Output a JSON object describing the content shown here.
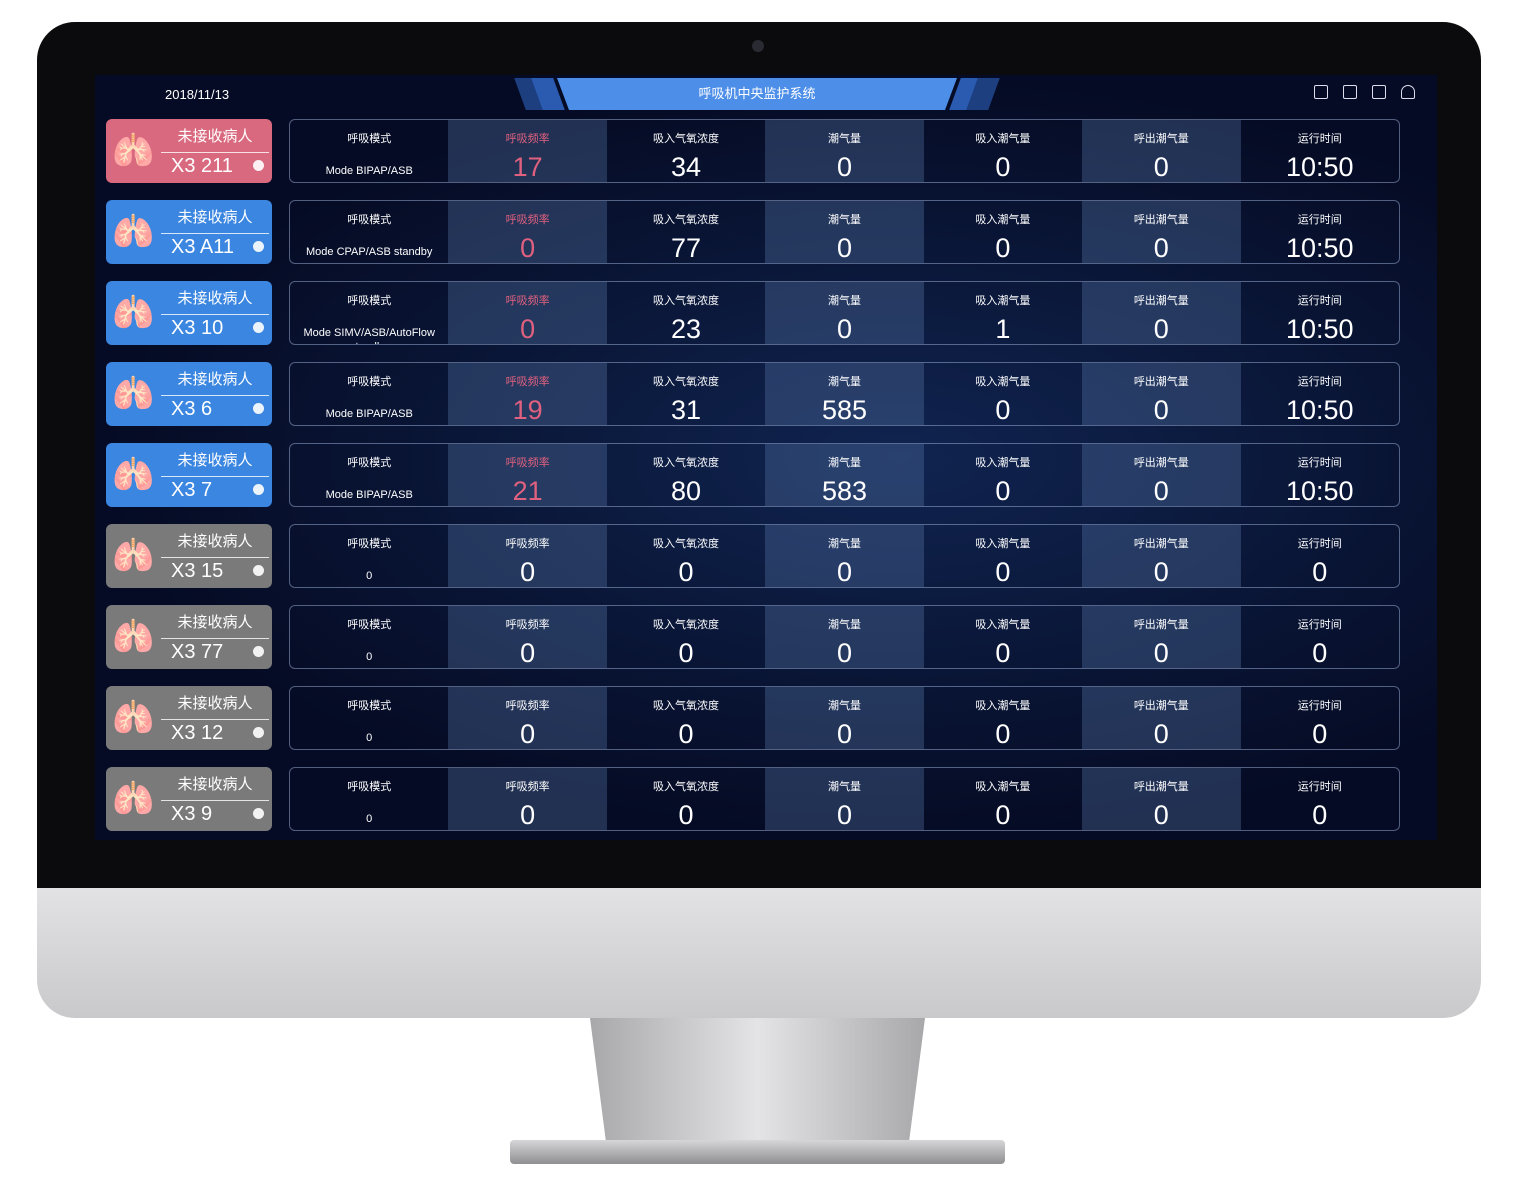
{
  "header": {
    "date": "2018/11/13",
    "title": "呼吸机中央监护系统",
    "icons": [
      "list-icon",
      "edit-icon",
      "layout-icon",
      "user-icon"
    ]
  },
  "colors": {
    "alert": "#d9697f",
    "active": "#3a86e0",
    "inactive": "#7a7a7a",
    "pink_text": "#e0607f"
  },
  "labels": [
    "呼吸模式",
    "呼吸频率",
    "吸入气氧浓度",
    "潮气量",
    "吸入潮气量",
    "呼出潮气量",
    "运行时间"
  ],
  "rows": [
    {
      "status": "未接收病人",
      "bed": "X3 211",
      "state": "alert",
      "mode": "Mode BIPAP/ASB",
      "values": [
        "17",
        "34",
        "0",
        "0",
        "0",
        "10:50"
      ]
    },
    {
      "status": "未接收病人",
      "bed": "X3 A11",
      "state": "active",
      "mode": "Mode CPAP/ASB standby",
      "values": [
        "0",
        "77",
        "0",
        "0",
        "0",
        "10:50"
      ]
    },
    {
      "status": "未接收病人",
      "bed": "X3 10",
      "state": "active",
      "mode": "Mode SIMV/ASB/AutoFlow standby",
      "values": [
        "0",
        "23",
        "0",
        "1",
        "0",
        "10:50"
      ]
    },
    {
      "status": "未接收病人",
      "bed": "X3 6",
      "state": "active",
      "mode": "Mode BIPAP/ASB",
      "values": [
        "19",
        "31",
        "585",
        "0",
        "0",
        "10:50"
      ]
    },
    {
      "status": "未接收病人",
      "bed": "X3 7",
      "state": "active",
      "mode": "Mode BIPAP/ASB",
      "values": [
        "21",
        "80",
        "583",
        "0",
        "0",
        "10:50"
      ]
    },
    {
      "status": "未接收病人",
      "bed": "X3 15",
      "state": "inactive",
      "mode": "0",
      "values": [
        "0",
        "0",
        "0",
        "0",
        "0",
        "0"
      ]
    },
    {
      "status": "未接收病人",
      "bed": "X3 77",
      "state": "inactive",
      "mode": "0",
      "values": [
        "0",
        "0",
        "0",
        "0",
        "0",
        "0"
      ]
    },
    {
      "status": "未接收病人",
      "bed": "X3 12",
      "state": "inactive",
      "mode": "0",
      "values": [
        "0",
        "0",
        "0",
        "0",
        "0",
        "0"
      ]
    },
    {
      "status": "未接收病人",
      "bed": "X3 9",
      "state": "inactive",
      "mode": "0",
      "values": [
        "0",
        "0",
        "0",
        "0",
        "0",
        "0"
      ]
    }
  ]
}
